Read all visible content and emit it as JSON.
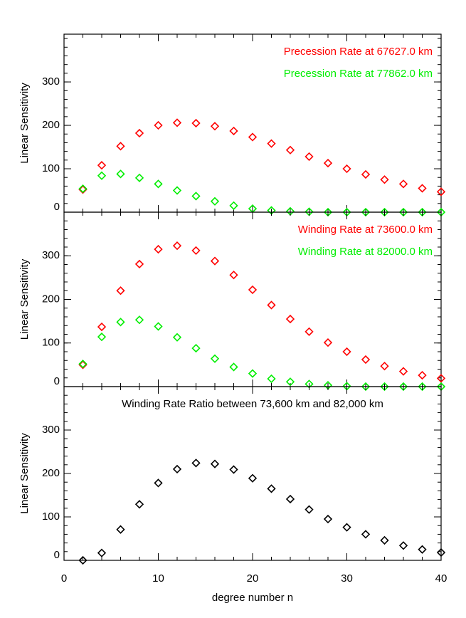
{
  "chart_data": [
    {
      "type": "scatter",
      "ylabel": "Linear Sensitivity",
      "legend": "upper right",
      "x": [
        2,
        4,
        6,
        8,
        10,
        12,
        14,
        16,
        18,
        20,
        22,
        24,
        26,
        28,
        30,
        32,
        34,
        36,
        38,
        40
      ],
      "xlim": [
        0,
        40
      ],
      "xticks": [
        0,
        10,
        20,
        30,
        40
      ],
      "ylim": [
        0,
        410
      ],
      "yticks": [
        0,
        100,
        200,
        300
      ],
      "series": [
        {
          "name": "Precession Rate at 67627.0 km",
          "color": "#ff0000",
          "values": [
            52,
            108,
            152,
            182,
            200,
            206,
            205,
            198,
            187,
            173,
            158,
            143,
            128,
            113,
            100,
            87,
            75,
            65,
            55,
            47
          ]
        },
        {
          "name": "Precession Rate at 77862.0 km",
          "color": "#00ee00",
          "values": [
            54,
            84,
            88,
            79,
            65,
            50,
            37,
            25,
            15,
            8,
            4,
            2,
            1,
            0,
            0,
            0,
            0,
            0,
            0,
            0
          ]
        }
      ]
    },
    {
      "type": "scatter",
      "ylabel": "Linear Sensitivity",
      "legend": "upper right",
      "x": [
        2,
        4,
        6,
        8,
        10,
        12,
        14,
        16,
        18,
        20,
        22,
        24,
        26,
        28,
        30,
        32,
        34,
        36,
        38,
        40
      ],
      "xlim": [
        0,
        40
      ],
      "xticks": [
        0,
        10,
        20,
        30,
        40
      ],
      "ylim": [
        0,
        400
      ],
      "yticks": [
        0,
        100,
        200,
        300
      ],
      "series": [
        {
          "name": "Winding Rate at 73600.0 km",
          "color": "#ff0000",
          "values": [
            50,
            137,
            220,
            281,
            315,
            323,
            312,
            288,
            256,
            222,
            187,
            155,
            126,
            101,
            80,
            62,
            47,
            35,
            26,
            19
          ]
        },
        {
          "name": "Winding Rate at 82000.0 km",
          "color": "#00ee00",
          "values": [
            52,
            114,
            148,
            153,
            138,
            113,
            88,
            64,
            45,
            30,
            18,
            11,
            6,
            3,
            1,
            0,
            0,
            0,
            0,
            0
          ]
        }
      ]
    },
    {
      "type": "scatter",
      "ylabel": "Linear Sensitivity",
      "xlabel": "degree number n",
      "legend": "upper center",
      "x": [
        2,
        4,
        6,
        8,
        10,
        12,
        14,
        16,
        18,
        20,
        22,
        24,
        26,
        28,
        30,
        32,
        34,
        36,
        38,
        40
      ],
      "xlim": [
        0,
        40
      ],
      "xticks": [
        0,
        10,
        20,
        30,
        40
      ],
      "ylim": [
        0,
        400
      ],
      "yticks": [
        0,
        100,
        200,
        300
      ],
      "series": [
        {
          "name": "Winding Rate Ratio between 73,600 km and 82,000 km",
          "color": "#000000",
          "values": [
            0,
            17,
            71,
            129,
            178,
            210,
            224,
            222,
            209,
            189,
            165,
            141,
            117,
            95,
            76,
            60,
            46,
            34,
            25,
            18
          ]
        }
      ]
    }
  ]
}
